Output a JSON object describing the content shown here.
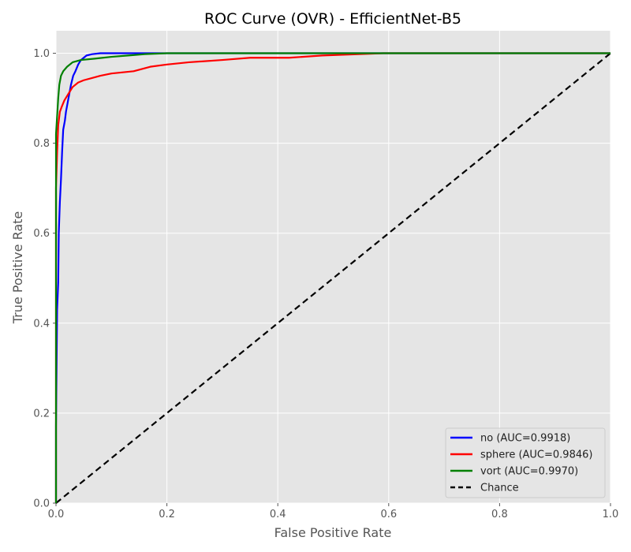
{
  "chart_data": {
    "type": "line",
    "title": "ROC Curve (OVR) - EfficientNet-B5",
    "xlabel": "False Positive Rate",
    "ylabel": "True Positive Rate",
    "xlim": [
      0,
      1
    ],
    "ylim": [
      0,
      1.05
    ],
    "xticks": [
      0.0,
      0.2,
      0.4,
      0.6,
      0.8,
      1.0
    ],
    "yticks": [
      0.0,
      0.2,
      0.4,
      0.6,
      0.8,
      1.0
    ],
    "xtick_labels": [
      "0.0",
      "0.2",
      "0.4",
      "0.6",
      "0.8",
      "1.0"
    ],
    "ytick_labels": [
      "0.0",
      "0.2",
      "0.4",
      "0.6",
      "0.8",
      "1.0"
    ],
    "grid": true,
    "legend_position": "bottom-right",
    "background": "#e5e5e5",
    "series": [
      {
        "name": "no (AUC=0.9918)",
        "color": "#0000ff",
        "style": "solid",
        "points": [
          [
            0,
            0
          ],
          [
            0,
            0.17
          ],
          [
            0.002,
            0.43
          ],
          [
            0.004,
            0.49
          ],
          [
            0.005,
            0.6
          ],
          [
            0.007,
            0.67
          ],
          [
            0.009,
            0.72
          ],
          [
            0.011,
            0.78
          ],
          [
            0.013,
            0.83
          ],
          [
            0.016,
            0.85
          ],
          [
            0.018,
            0.87
          ],
          [
            0.021,
            0.89
          ],
          [
            0.024,
            0.91
          ],
          [
            0.027,
            0.93
          ],
          [
            0.031,
            0.95
          ],
          [
            0.035,
            0.96
          ],
          [
            0.04,
            0.975
          ],
          [
            0.045,
            0.985
          ],
          [
            0.05,
            0.99
          ],
          [
            0.055,
            0.995
          ],
          [
            0.065,
            0.998
          ],
          [
            0.08,
            1.0
          ],
          [
            0.21,
            1.0
          ],
          [
            1.0,
            1.0
          ]
        ]
      },
      {
        "name": "sphere (AUC=0.9846)",
        "color": "#ff0000",
        "style": "solid",
        "points": [
          [
            0,
            0
          ],
          [
            0,
            0.7
          ],
          [
            0.002,
            0.78
          ],
          [
            0.004,
            0.84
          ],
          [
            0.007,
            0.87
          ],
          [
            0.01,
            0.88
          ],
          [
            0.015,
            0.895
          ],
          [
            0.02,
            0.905
          ],
          [
            0.025,
            0.915
          ],
          [
            0.03,
            0.925
          ],
          [
            0.04,
            0.935
          ],
          [
            0.05,
            0.94
          ],
          [
            0.065,
            0.945
          ],
          [
            0.08,
            0.95
          ],
          [
            0.1,
            0.955
          ],
          [
            0.14,
            0.96
          ],
          [
            0.17,
            0.97
          ],
          [
            0.2,
            0.975
          ],
          [
            0.24,
            0.98
          ],
          [
            0.3,
            0.985
          ],
          [
            0.35,
            0.99
          ],
          [
            0.42,
            0.99
          ],
          [
            0.48,
            0.995
          ],
          [
            0.59,
            1.0
          ],
          [
            1.0,
            1.0
          ]
        ]
      },
      {
        "name": "vort (AUC=0.9970)",
        "color": "#008000",
        "style": "solid",
        "points": [
          [
            0,
            0
          ],
          [
            0,
            0.82
          ],
          [
            0.002,
            0.86
          ],
          [
            0.004,
            0.9
          ],
          [
            0.006,
            0.93
          ],
          [
            0.009,
            0.95
          ],
          [
            0.013,
            0.96
          ],
          [
            0.02,
            0.97
          ],
          [
            0.03,
            0.98
          ],
          [
            0.045,
            0.985
          ],
          [
            0.07,
            0.988
          ],
          [
            0.1,
            0.992
          ],
          [
            0.13,
            0.995
          ],
          [
            0.16,
            0.998
          ],
          [
            0.2,
            1.0
          ],
          [
            1.0,
            1.0
          ]
        ]
      },
      {
        "name": "Chance",
        "color": "#000000",
        "style": "dashed",
        "points": [
          [
            0,
            0
          ],
          [
            1,
            1
          ]
        ]
      }
    ]
  }
}
